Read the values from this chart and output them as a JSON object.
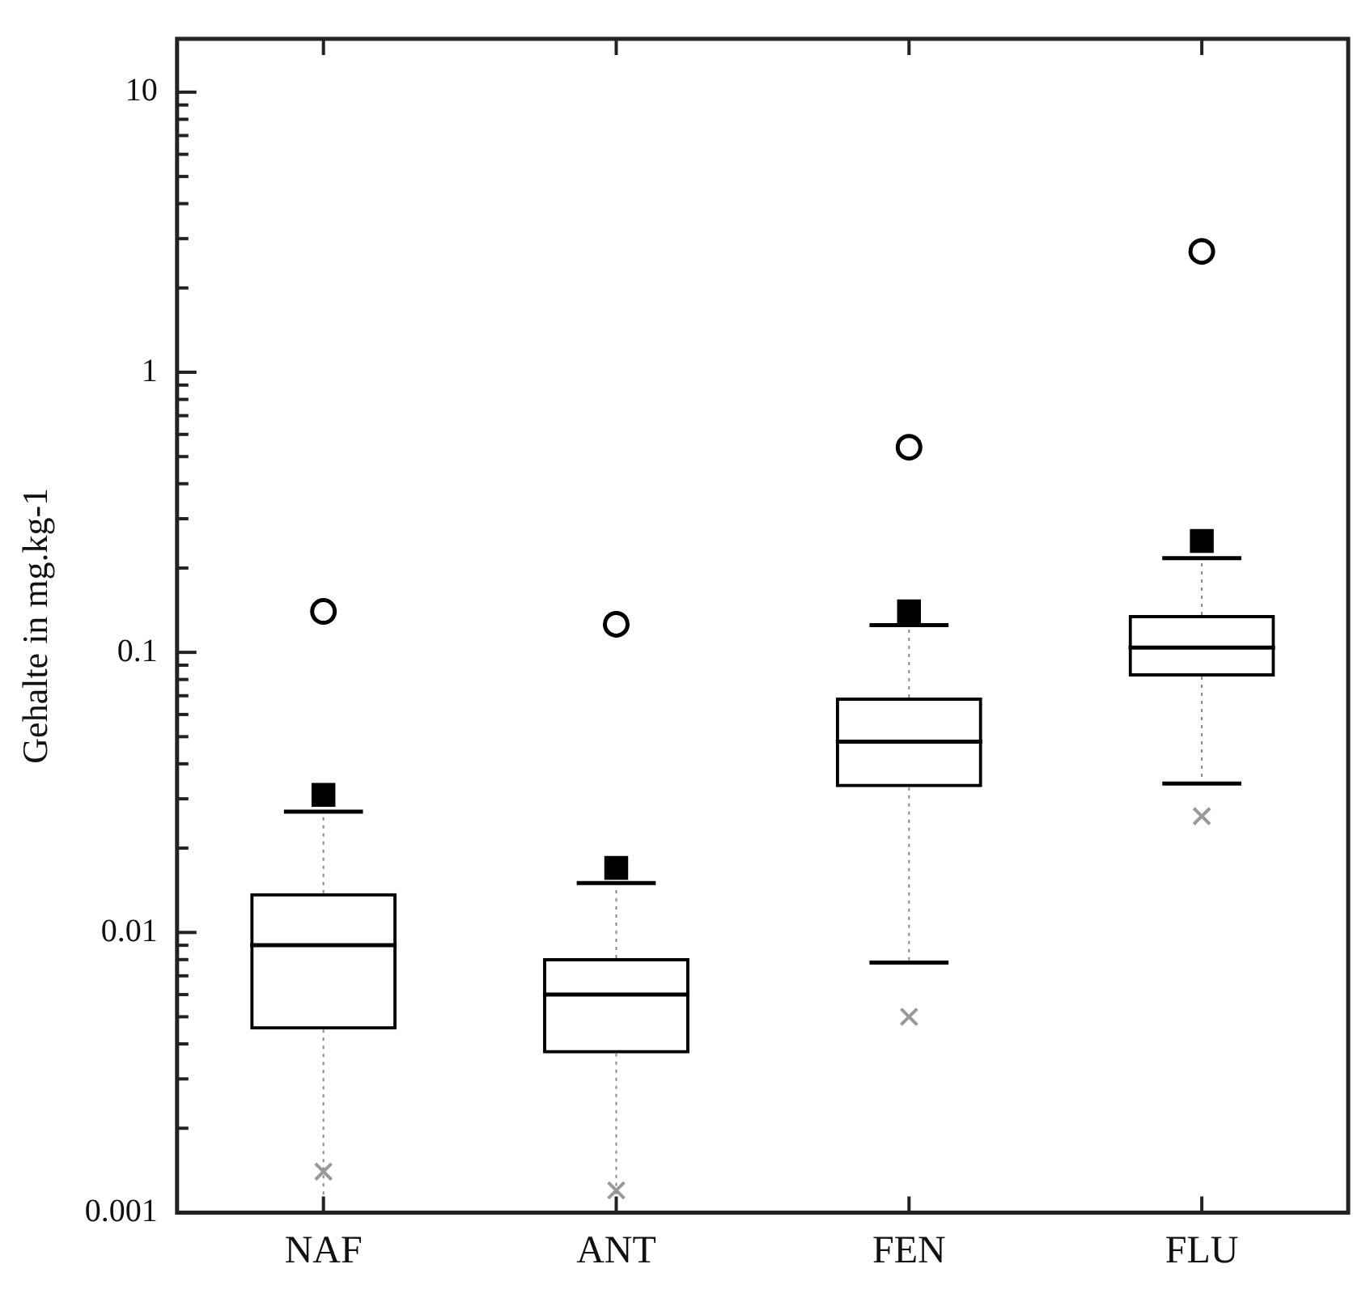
{
  "chart_data": {
    "type": "box",
    "ylabel": "Gehalte in mg.kg-1",
    "categories": [
      "NAF",
      "ANT",
      "FEN",
      "FLU"
    ],
    "boxes": [
      {
        "low": 0.001,
        "q1": 0.0045,
        "median": 0.009,
        "q3": 0.0138,
        "high": 0.027
      },
      {
        "low": 0.001,
        "q1": 0.0037,
        "median": 0.006,
        "q3": 0.0081,
        "high": 0.015
      },
      {
        "low": 0.0078,
        "q1": 0.033,
        "median": 0.048,
        "q3": 0.069,
        "high": 0.125
      },
      {
        "low": 0.034,
        "q1": 0.082,
        "median": 0.104,
        "q3": 0.136,
        "high": 0.217
      }
    ],
    "color": "#000000",
    "series": [
      {
        "type": "scatter",
        "marker": "circle",
        "color": "#000000",
        "x": [
          "NAF",
          "ANT",
          "FEN",
          "FLU"
        ],
        "values": [
          0.14,
          0.126,
          0.54,
          2.7
        ]
      },
      {
        "type": "scatter",
        "marker": "square",
        "color": "#000000",
        "x": [
          "NAF",
          "ANT",
          "FEN",
          "FLU"
        ],
        "values": [
          0.031,
          0.017,
          0.14,
          0.25
        ]
      },
      {
        "type": "scatter",
        "marker": "cross",
        "color": "#999999",
        "x": [
          "NAF",
          "ANT",
          "FEN",
          "FLU"
        ],
        "values": [
          0.0014,
          0.0012,
          0.005,
          0.026
        ]
      }
    ],
    "log": true,
    "grid": false,
    "legend": false,
    "ylim": [
      0.001,
      15.5
    ],
    "yticks": [
      0.001,
      {
        "value": 0.002,
        "label": null
      },
      {
        "value": 0.003,
        "label": null
      },
      {
        "value": 0.004,
        "label": null
      },
      {
        "value": 0.005,
        "label": null
      },
      {
        "value": 0.006,
        "label": null
      },
      {
        "value": 0.007,
        "label": null
      },
      {
        "value": 0.008,
        "label": null
      },
      {
        "value": 0.009,
        "label": null
      },
      0.01,
      {
        "value": 0.02,
        "label": null
      },
      {
        "value": 0.03,
        "label": null
      },
      {
        "value": 0.04,
        "label": null
      },
      {
        "value": 0.05,
        "label": null
      },
      {
        "value": 0.06,
        "label": null
      },
      {
        "value": 0.07,
        "label": null
      },
      {
        "value": 0.08,
        "label": null
      },
      {
        "value": 0.09,
        "label": null
      },
      0.1,
      {
        "value": 0.2,
        "label": null
      },
      {
        "value": 0.3,
        "label": null
      },
      {
        "value": 0.4,
        "label": null
      },
      {
        "value": 0.5,
        "label": null
      },
      {
        "value": 0.6,
        "label": null
      },
      {
        "value": 0.7,
        "label": null
      },
      {
        "value": 0.8,
        "label": null
      },
      {
        "value": 0.9,
        "label": null
      },
      1,
      {
        "value": 2,
        "label": null
      },
      {
        "value": 3,
        "label": null
      },
      {
        "value": 4,
        "label": null
      },
      {
        "value": 5,
        "label": null
      },
      {
        "value": 6,
        "label": null
      },
      {
        "value": 7,
        "label": null
      },
      {
        "value": 8,
        "label": null
      },
      {
        "value": 9,
        "label": null
      },
      10
    ]
  }
}
